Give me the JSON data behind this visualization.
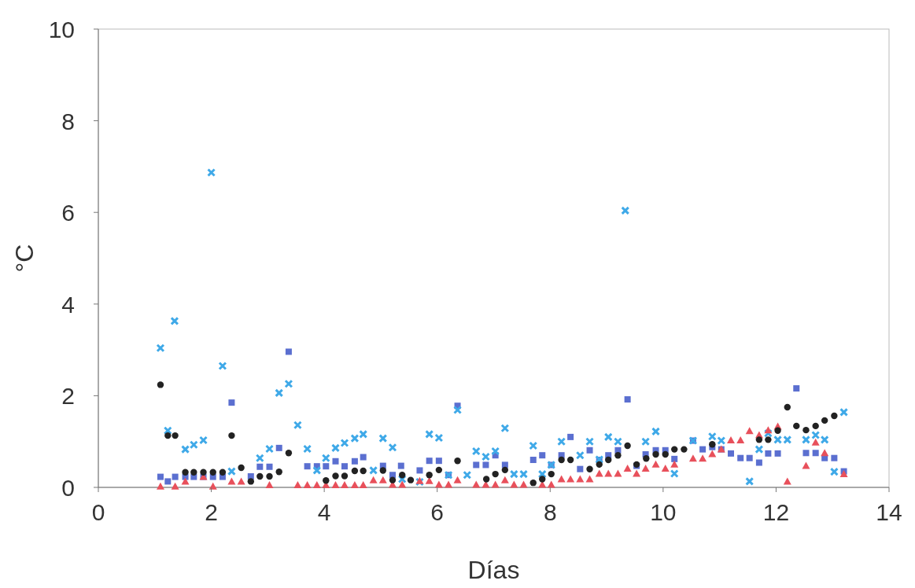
{
  "chart_data": {
    "type": "scatter",
    "xlabel": "Días",
    "ylabel": "°C",
    "xlim": [
      0,
      14
    ],
    "ylim": [
      0,
      10
    ],
    "xticks": [
      0,
      2,
      4,
      6,
      8,
      10,
      12,
      14
    ],
    "yticks": [
      0,
      2,
      4,
      6,
      8,
      10
    ],
    "grid": false,
    "series": [
      {
        "color": "#5b6fd0",
        "marker": "square",
        "x": [
          1.1,
          1.23,
          1.36,
          1.54,
          1.69,
          1.86,
          2.03,
          2.2,
          2.36,
          2.7,
          2.86,
          3.03,
          3.2,
          3.37,
          3.7,
          3.87,
          4.03,
          4.2,
          4.36,
          4.54,
          4.69,
          5.04,
          5.21,
          5.36,
          5.69,
          5.86,
          6.03,
          6.2,
          6.36,
          6.69,
          6.86,
          7.03,
          7.2,
          7.7,
          7.86,
          8.02,
          8.2,
          8.36,
          8.53,
          8.7,
          8.87,
          9.03,
          9.2,
          9.37,
          9.53,
          9.69,
          9.87,
          10.04,
          10.2,
          10.53,
          10.7,
          10.87,
          11.03,
          11.2,
          11.37,
          11.53,
          11.7,
          11.86,
          12.03,
          12.36,
          12.53,
          12.7,
          12.86,
          13.03,
          13.2
        ],
        "values": [
          0.23,
          0.13,
          0.23,
          0.23,
          0.23,
          0.23,
          0.23,
          0.23,
          1.85,
          0.24,
          0.45,
          0.45,
          0.86,
          2.96,
          0.46,
          0.46,
          0.46,
          0.57,
          0.46,
          0.57,
          0.66,
          0.47,
          0.27,
          0.47,
          0.37,
          0.58,
          0.58,
          0.27,
          1.78,
          0.49,
          0.49,
          0.7,
          0.49,
          0.6,
          0.7,
          0.49,
          0.7,
          1.1,
          0.4,
          0.81,
          0.6,
          0.7,
          0.81,
          1.92,
          0.47,
          0.72,
          0.81,
          0.81,
          0.62,
          1.02,
          0.83,
          0.88,
          0.83,
          0.74,
          0.64,
          0.64,
          0.54,
          0.74,
          0.74,
          2.16,
          0.75,
          0.75,
          0.64,
          0.64,
          0.35
        ]
      },
      {
        "color": "#3fa9e8",
        "marker": "cross",
        "x": [
          1.1,
          1.23,
          1.35,
          1.54,
          1.69,
          1.86,
          2.0,
          2.2,
          2.36,
          2.86,
          3.03,
          3.2,
          3.37,
          3.53,
          3.7,
          3.87,
          4.03,
          4.2,
          4.36,
          4.54,
          4.69,
          4.87,
          5.04,
          5.21,
          5.38,
          5.69,
          5.86,
          6.03,
          6.2,
          6.36,
          6.53,
          6.69,
          6.86,
          7.03,
          7.2,
          7.36,
          7.53,
          7.7,
          7.86,
          8.02,
          8.2,
          8.53,
          8.7,
          8.87,
          9.03,
          9.2,
          9.33,
          9.69,
          9.87,
          10.2,
          10.53,
          10.87,
          11.03,
          11.53,
          11.7,
          11.86,
          12.03,
          12.2,
          12.53,
          12.7,
          12.86,
          13.03,
          13.2
        ],
        "values": [
          3.04,
          1.24,
          3.63,
          0.83,
          0.93,
          1.03,
          6.87,
          2.65,
          0.35,
          0.64,
          0.84,
          2.06,
          2.26,
          1.36,
          0.84,
          0.37,
          0.64,
          0.86,
          0.97,
          1.07,
          1.16,
          0.37,
          1.07,
          0.87,
          0.18,
          0.12,
          1.16,
          1.08,
          0.27,
          1.69,
          0.27,
          0.79,
          0.67,
          0.79,
          1.29,
          0.29,
          0.29,
          0.91,
          0.29,
          0.49,
          1.0,
          0.7,
          1.0,
          0.61,
          1.1,
          1.0,
          6.04,
          1.0,
          1.22,
          0.3,
          1.02,
          1.11,
          1.02,
          0.13,
          0.83,
          1.18,
          1.04,
          1.04,
          1.04,
          1.14,
          1.04,
          0.34,
          1.64
        ]
      },
      {
        "color": "#e8505b",
        "marker": "triangle",
        "x": [
          1.1,
          1.36,
          1.54,
          1.86,
          2.03,
          2.36,
          2.53,
          3.03,
          3.53,
          3.7,
          3.87,
          4.03,
          4.2,
          4.36,
          4.54,
          4.69,
          4.87,
          5.04,
          5.21,
          5.38,
          5.69,
          5.86,
          6.03,
          6.2,
          6.36,
          6.69,
          6.86,
          7.03,
          7.2,
          7.36,
          7.53,
          7.86,
          8.02,
          8.2,
          8.36,
          8.53,
          8.7,
          8.87,
          9.03,
          9.2,
          9.37,
          9.53,
          9.69,
          9.87,
          10.04,
          10.2,
          10.53,
          10.7,
          10.87,
          11.03,
          11.2,
          11.37,
          11.53,
          11.7,
          11.86,
          12.03,
          12.2,
          12.53,
          12.7,
          12.86,
          13.2
        ],
        "values": [
          0.02,
          0.02,
          0.13,
          0.23,
          0.02,
          0.13,
          0.13,
          0.05,
          0.05,
          0.05,
          0.05,
          0.05,
          0.05,
          0.05,
          0.05,
          0.05,
          0.16,
          0.16,
          0.06,
          0.06,
          0.14,
          0.14,
          0.06,
          0.06,
          0.16,
          0.06,
          0.06,
          0.06,
          0.16,
          0.06,
          0.06,
          0.06,
          0.06,
          0.18,
          0.18,
          0.18,
          0.18,
          0.3,
          0.3,
          0.3,
          0.41,
          0.3,
          0.41,
          0.5,
          0.41,
          0.5,
          0.63,
          0.63,
          0.73,
          0.83,
          1.03,
          1.03,
          1.23,
          1.14,
          1.25,
          1.33,
          0.13,
          0.47,
          0.98,
          0.75,
          0.29
        ]
      },
      {
        "color": "#222222",
        "marker": "circle",
        "x": [
          1.1,
          1.23,
          1.36,
          1.54,
          1.69,
          1.86,
          2.03,
          2.2,
          2.36,
          2.53,
          2.7,
          2.86,
          3.03,
          3.2,
          3.37,
          4.03,
          4.2,
          4.36,
          4.54,
          4.69,
          5.04,
          5.21,
          5.38,
          5.53,
          5.86,
          6.03,
          6.36,
          6.87,
          7.03,
          7.2,
          7.7,
          7.86,
          8.02,
          8.2,
          8.36,
          8.7,
          8.87,
          9.03,
          9.2,
          9.37,
          9.53,
          9.7,
          9.87,
          10.04,
          10.2,
          10.37,
          10.87,
          11.7,
          11.86,
          12.03,
          12.2,
          12.36,
          12.53,
          12.7,
          12.86,
          13.03
        ],
        "values": [
          2.24,
          1.13,
          1.13,
          0.33,
          0.33,
          0.33,
          0.33,
          0.33,
          1.13,
          0.43,
          0.13,
          0.24,
          0.24,
          0.34,
          0.75,
          0.15,
          0.25,
          0.25,
          0.36,
          0.36,
          0.37,
          0.16,
          0.27,
          0.16,
          0.27,
          0.38,
          0.58,
          0.18,
          0.29,
          0.38,
          0.1,
          0.18,
          0.29,
          0.6,
          0.6,
          0.4,
          0.5,
          0.6,
          0.7,
          0.91,
          0.5,
          0.63,
          0.72,
          0.72,
          0.83,
          0.83,
          0.94,
          1.04,
          1.04,
          1.24,
          1.75,
          1.34,
          1.25,
          1.34,
          1.46,
          1.56
        ]
      }
    ]
  }
}
